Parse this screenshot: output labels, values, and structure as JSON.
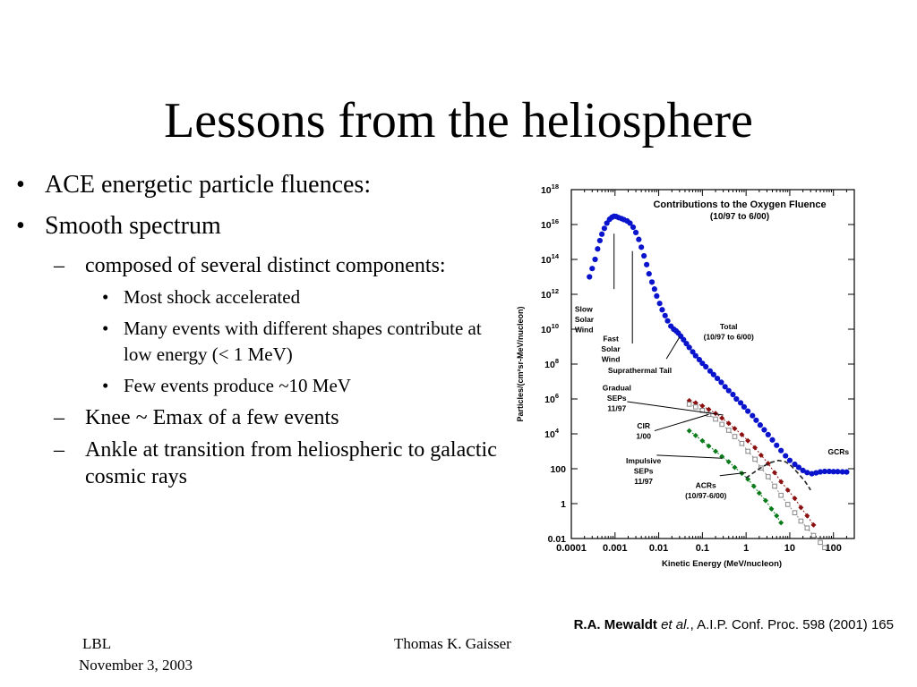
{
  "slide": {
    "title": "Lessons from the heliosphere",
    "bullets": {
      "b1": "ACE energetic particle fluences:",
      "b2": "Smooth spectrum",
      "b2_sub1": "composed of several distinct components:",
      "b2_sub1_sub1": "Most shock accelerated",
      "b2_sub1_sub2": "Many events with different shapes contribute at low energy (< 1 MeV)",
      "b2_sub1_sub3": "Few events produce ~10 MeV",
      "b2_sub2": "Knee ~ Emax of a few events",
      "b2_sub3": "Ankle at transition from heliospheric to galactic cosmic rays",
      "bullet_mark": "•",
      "dash_mark": "–"
    },
    "citation": {
      "author": "R.A. Mewaldt",
      "etal": "et al.",
      "ref": ", A.I.P. Conf. Proc. 598 (2001) 165"
    },
    "footer": {
      "org": "LBL",
      "date": "November 3, 2003",
      "presenter": "Thomas K. Gaisser"
    }
  },
  "chart_data": {
    "type": "scatter",
    "title": "Contributions to the Oxygen Fluence",
    "subtitle": "(10/97 to 6/00)",
    "xlabel": "Kinetic Energy (MeV/nucleon)",
    "ylabel": "Particles/(cm²sr-MeV/nucleon)",
    "xscale": "log",
    "yscale": "log",
    "xlim": [
      0.0001,
      300
    ],
    "ylim": [
      0.01,
      1e+18
    ],
    "x_ticks": [
      {
        "v": 0.0001,
        "label": "0.0001"
      },
      {
        "v": 0.001,
        "label": "0.001"
      },
      {
        "v": 0.01,
        "label": "0.01"
      },
      {
        "v": 0.1,
        "label": "0.1"
      },
      {
        "v": 1,
        "label": "1"
      },
      {
        "v": 10,
        "label": "10"
      },
      {
        "v": 100,
        "label": "100"
      }
    ],
    "y_ticks": [
      {
        "v": 1e+18,
        "base": "10",
        "exp": "18"
      },
      {
        "v": 1e+16,
        "base": "10",
        "exp": "16"
      },
      {
        "v": 100000000000000.0,
        "base": "10",
        "exp": "14"
      },
      {
        "v": 1000000000000.0,
        "base": "10",
        "exp": "12"
      },
      {
        "v": 10000000000.0,
        "base": "10",
        "exp": "10"
      },
      {
        "v": 100000000.0,
        "base": "10",
        "exp": "8"
      },
      {
        "v": 1000000.0,
        "base": "10",
        "exp": "6"
      },
      {
        "v": 10000.0,
        "base": "10",
        "exp": "4"
      },
      {
        "v": 100,
        "base": "100",
        "exp": ""
      },
      {
        "v": 1,
        "base": "1",
        "exp": ""
      },
      {
        "v": 0.01,
        "base": "0.01",
        "exp": ""
      }
    ],
    "series": [
      {
        "name": "Total (10/97 to 6/00)",
        "color": "#0a14cc",
        "marker": "circle",
        "points": [
          [
            0.00026,
            10000000000000.0
          ],
          [
            0.0003,
            30000000000000.0
          ],
          [
            0.00035,
            100000000000000.0
          ],
          [
            0.0004,
            400000000000000.0
          ],
          [
            0.00045,
            1200000000000000.0
          ],
          [
            0.0005,
            2800000000000000.0
          ],
          [
            0.00057,
            6000000000000000.0
          ],
          [
            0.00065,
            1.2e+16
          ],
          [
            0.00075,
            2e+16
          ],
          [
            0.00085,
            2.6e+16
          ],
          [
            0.00095,
            3e+16
          ],
          [
            0.00105,
            2.9e+16
          ],
          [
            0.0012,
            2.5e+16
          ],
          [
            0.0014,
            2.2e+16
          ],
          [
            0.0016,
            1.9e+16
          ],
          [
            0.0019,
            1.6e+16
          ],
          [
            0.0022,
            1.2e+16
          ],
          [
            0.0026,
            7000000000000000.0
          ],
          [
            0.003,
            3500000000000000.0
          ],
          [
            0.0035,
            1400000000000000.0
          ],
          [
            0.004,
            500000000000000.0
          ],
          [
            0.0046,
            160000000000000.0
          ],
          [
            0.0053,
            50000000000000.0
          ],
          [
            0.006,
            15000000000000.0
          ],
          [
            0.007,
            5000000000000.0
          ],
          [
            0.008,
            2000000000000.0
          ],
          [
            0.009,
            800000000000.0
          ],
          [
            0.0105,
            300000000000.0
          ],
          [
            0.012,
            130000000000.0
          ],
          [
            0.014,
            60000000000.0
          ],
          [
            0.016,
            30000000000.0
          ],
          [
            0.019,
            15000000000.0
          ],
          [
            0.022,
            10000000000.0
          ],
          [
            0.025,
            8000000000.0
          ],
          [
            0.028,
            6000000000.0
          ],
          [
            0.032,
            4000000000.0
          ],
          [
            0.037,
            2500000000.0
          ],
          [
            0.043,
            1500000000.0
          ],
          [
            0.05,
            900000000.0
          ],
          [
            0.06,
            500000000.0
          ],
          [
            0.07,
            300000000.0
          ],
          [
            0.085,
            180000000.0
          ],
          [
            0.1,
            110000000.0
          ],
          [
            0.12,
            70000000.0
          ],
          [
            0.15,
            40000000.0
          ],
          [
            0.18,
            25000000.0
          ],
          [
            0.22,
            15000000.0
          ],
          [
            0.27,
            9000000.0
          ],
          [
            0.33,
            5000000.0
          ],
          [
            0.4,
            3000000.0
          ],
          [
            0.5,
            1800000.0
          ],
          [
            0.6,
            1000000.0
          ],
          [
            0.75,
            600000.0
          ],
          [
            0.9,
            350000.0
          ],
          [
            1.1,
            200000.0
          ],
          [
            1.4,
            110000.0
          ],
          [
            1.7,
            60000.0
          ],
          [
            2.1,
            32000.0
          ],
          [
            2.6,
            17000.0
          ],
          [
            3.2,
            9000.0
          ],
          [
            4,
            4500.0
          ],
          [
            5,
            2200.0
          ],
          [
            6.3,
            1100.0
          ],
          [
            8,
            550
          ],
          [
            10,
            300
          ],
          [
            13,
            180
          ],
          [
            16,
            120
          ],
          [
            20,
            80
          ],
          [
            25,
            60
          ],
          [
            32,
            52
          ],
          [
            40,
            58
          ],
          [
            50,
            66
          ],
          [
            63,
            70
          ],
          [
            80,
            70
          ],
          [
            100,
            68
          ],
          [
            125,
            68
          ],
          [
            160,
            66
          ],
          [
            200,
            65
          ]
        ]
      },
      {
        "name": "Gradual SEPs 11/97",
        "color": "#8b1010",
        "marker": "diamond",
        "points": [
          [
            0.05,
            800000.0
          ],
          [
            0.07,
            600000.0
          ],
          [
            0.1,
            400000.0
          ],
          [
            0.14,
            250000.0
          ],
          [
            0.2,
            150000.0
          ],
          [
            0.28,
            80000.0
          ],
          [
            0.4,
            40000.0
          ],
          [
            0.55,
            20000.0
          ],
          [
            0.8,
            9000.0
          ],
          [
            1.1,
            4000.0
          ],
          [
            1.6,
            1600.0
          ],
          [
            2.2,
            600
          ],
          [
            3.2,
            200
          ],
          [
            4.5,
            60
          ],
          [
            6.3,
            18
          ],
          [
            9,
            6
          ],
          [
            13,
            2
          ],
          [
            18,
            0.6
          ],
          [
            25,
            0.2
          ],
          [
            35,
            0.06
          ]
        ]
      },
      {
        "name": "CIR 1/00",
        "color": "#888888",
        "marker": "square",
        "points": [
          [
            0.05,
            500000.0
          ],
          [
            0.07,
            350000.0
          ],
          [
            0.1,
            220000.0
          ],
          [
            0.14,
            130000.0
          ],
          [
            0.2,
            70000.0
          ],
          [
            0.28,
            35000.0
          ],
          [
            0.4,
            16000.0
          ],
          [
            0.55,
            7000.0
          ],
          [
            0.8,
            2800.0
          ],
          [
            1.1,
            1000.0
          ],
          [
            1.6,
            350
          ],
          [
            2.2,
            110
          ],
          [
            3.2,
            35
          ],
          [
            4.5,
            10
          ],
          [
            6.3,
            3
          ],
          [
            9,
            0.9
          ],
          [
            13,
            0.3
          ],
          [
            18,
            0.1
          ],
          [
            25,
            0.04
          ],
          [
            35,
            0.015
          ],
          [
            50,
            0.006
          ],
          [
            63,
            0.003
          ]
        ]
      },
      {
        "name": "Impulsive SEPs 11/97",
        "color": "#0a7a1a",
        "marker": "diamond",
        "points": [
          [
            0.05,
            15000.0
          ],
          [
            0.07,
            8000.0
          ],
          [
            0.1,
            4000.0
          ],
          [
            0.14,
            2000.0
          ],
          [
            0.2,
            1000.0
          ],
          [
            0.28,
            500
          ],
          [
            0.4,
            250
          ],
          [
            0.55,
            120
          ],
          [
            0.8,
            55
          ],
          [
            1.1,
            25
          ],
          [
            1.5,
            10
          ],
          [
            2,
            4
          ],
          [
            2.8,
            1.5
          ],
          [
            3.8,
            0.5
          ],
          [
            5,
            0.2
          ],
          [
            6.3,
            0.08
          ]
        ]
      },
      {
        "name": "ACRs (10/97-6/00)",
        "color": "#222222",
        "marker": "dashed",
        "points": [
          [
            1,
            30
          ],
          [
            2,
            100
          ],
          [
            3.5,
            220
          ],
          [
            5.5,
            300
          ],
          [
            8,
            250
          ],
          [
            11,
            140
          ],
          [
            15,
            60
          ],
          [
            22,
            20
          ],
          [
            30,
            6
          ]
        ]
      }
    ],
    "annotations": [
      {
        "lines": [
          "Slow",
          "Solar",
          "Wind"
        ],
        "x": 0.00012,
        "y": 100000000000.0,
        "anchor": "start"
      },
      {
        "lines": [
          "Fast",
          "Solar",
          "Wind"
        ],
        "x": 0.0008,
        "y": 2000000000.0,
        "anchor": "middle"
      },
      {
        "lines": [
          "Suprathermal Tail"
        ],
        "x": 0.0037,
        "y": 30000000.0,
        "anchor": "middle"
      },
      {
        "lines": [
          "Total",
          "(10/97 to 6/00)"
        ],
        "x": 0.4,
        "y": 10000000000.0,
        "anchor": "middle"
      },
      {
        "lines": [
          "Gradual",
          "SEPs",
          "11/97"
        ],
        "x": 0.0011,
        "y": 3000000.0,
        "anchor": "middle"
      },
      {
        "lines": [
          "CIR",
          "1/00"
        ],
        "x": 0.0045,
        "y": 20000.0,
        "anchor": "middle"
      },
      {
        "lines": [
          "Impulsive",
          "SEPs",
          "11/97"
        ],
        "x": 0.0045,
        "y": 200.0,
        "anchor": "middle"
      },
      {
        "lines": [
          "ACRs",
          "(10/97-6/00)"
        ],
        "x": 0.12,
        "y": 8,
        "anchor": "middle"
      },
      {
        "lines": [
          "GCRs"
        ],
        "x": 130,
        "y": 650,
        "anchor": "middle"
      }
    ],
    "leader_lines": [
      {
        "from": [
          0.00095,
          3000000000000000.0
        ],
        "to": [
          0.00095,
          2000000000000.0
        ]
      },
      {
        "from": [
          0.0025,
          300000000000000.0
        ],
        "to": [
          0.0025,
          1500000000.0
        ]
      },
      {
        "from": [
          0.03,
          3500000000.0
        ],
        "to": [
          0.015,
          200000000.0
        ]
      },
      {
        "from": [
          0.0019,
          700000.0
        ],
        "to": [
          0.3,
          120000.0
        ]
      },
      {
        "from": [
          0.008,
          15000.0
        ],
        "to": [
          0.14,
          130000.0
        ]
      },
      {
        "from": [
          0.009,
          600
        ],
        "to": [
          0.28,
          400
        ]
      },
      {
        "from": [
          0.25,
          40
        ],
        "to": [
          1,
          60
        ]
      }
    ]
  }
}
